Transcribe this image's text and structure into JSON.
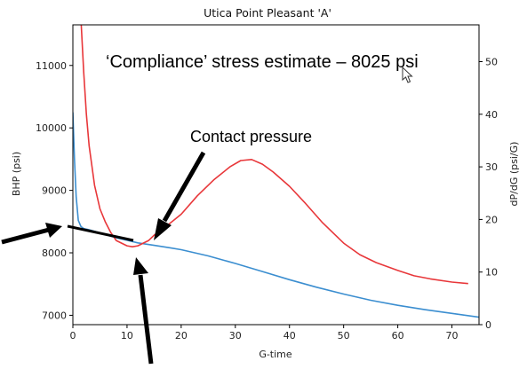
{
  "chart_data": {
    "type": "line",
    "title": "Utica Point Pleasant 'A'",
    "xlabel": "G-time",
    "ylabel_left": "BHP (psi)",
    "ylabel_right": "dP/dG (psi/G)",
    "xlim": [
      0,
      75
    ],
    "ylim_left": [
      6850,
      11650
    ],
    "ylim_right": [
      0,
      57
    ],
    "x_ticks": [
      0,
      10,
      20,
      30,
      40,
      50,
      60,
      70
    ],
    "y_left_ticks": [
      7000,
      8000,
      9000,
      10000,
      11000
    ],
    "y_right_ticks": [
      0,
      10,
      20,
      30,
      40,
      50
    ],
    "grid": false,
    "series": [
      {
        "axis": "left",
        "color": "#3b8ed0",
        "points": [
          [
            0,
            10250
          ],
          [
            0.3,
            9500
          ],
          [
            0.6,
            8900
          ],
          [
            1,
            8520
          ],
          [
            1.5,
            8420
          ],
          [
            2,
            8390
          ],
          [
            3,
            8370
          ],
          [
            5,
            8320
          ],
          [
            8,
            8240
          ],
          [
            10,
            8200
          ],
          [
            12,
            8160
          ],
          [
            15,
            8120
          ],
          [
            18,
            8080
          ],
          [
            20,
            8050
          ],
          [
            25,
            7950
          ],
          [
            30,
            7830
          ],
          [
            35,
            7700
          ],
          [
            40,
            7570
          ],
          [
            45,
            7450
          ],
          [
            50,
            7340
          ],
          [
            55,
            7240
          ],
          [
            60,
            7160
          ],
          [
            65,
            7090
          ],
          [
            70,
            7030
          ],
          [
            75,
            6970
          ]
        ]
      },
      {
        "axis": "right",
        "color": "#e8373a",
        "points": [
          [
            1.5,
            58
          ],
          [
            2,
            48
          ],
          [
            2.5,
            40
          ],
          [
            3,
            34
          ],
          [
            4,
            26.5
          ],
          [
            5,
            22
          ],
          [
            6,
            19.5
          ],
          [
            7,
            17.5
          ],
          [
            8,
            16
          ],
          [
            10,
            15
          ],
          [
            11,
            14.8
          ],
          [
            12,
            15
          ],
          [
            14,
            16
          ],
          [
            15,
            17
          ],
          [
            17,
            18.5
          ],
          [
            20,
            21
          ],
          [
            23,
            24.5
          ],
          [
            26,
            27.5
          ],
          [
            29,
            30
          ],
          [
            31,
            31.2
          ],
          [
            33,
            31.4
          ],
          [
            35,
            30.5
          ],
          [
            37,
            29
          ],
          [
            40,
            26.3
          ],
          [
            43,
            23
          ],
          [
            46,
            19.5
          ],
          [
            50,
            15.5
          ],
          [
            53,
            13.3
          ],
          [
            56,
            11.8
          ],
          [
            60,
            10.3
          ],
          [
            63,
            9.3
          ],
          [
            66,
            8.7
          ],
          [
            70,
            8.1
          ],
          [
            73,
            7.8
          ]
        ]
      }
    ],
    "annotations": {
      "main_text": "‘Compliance’ stress estimate – 8025 psi",
      "contact_text": "Contact pressure"
    }
  }
}
